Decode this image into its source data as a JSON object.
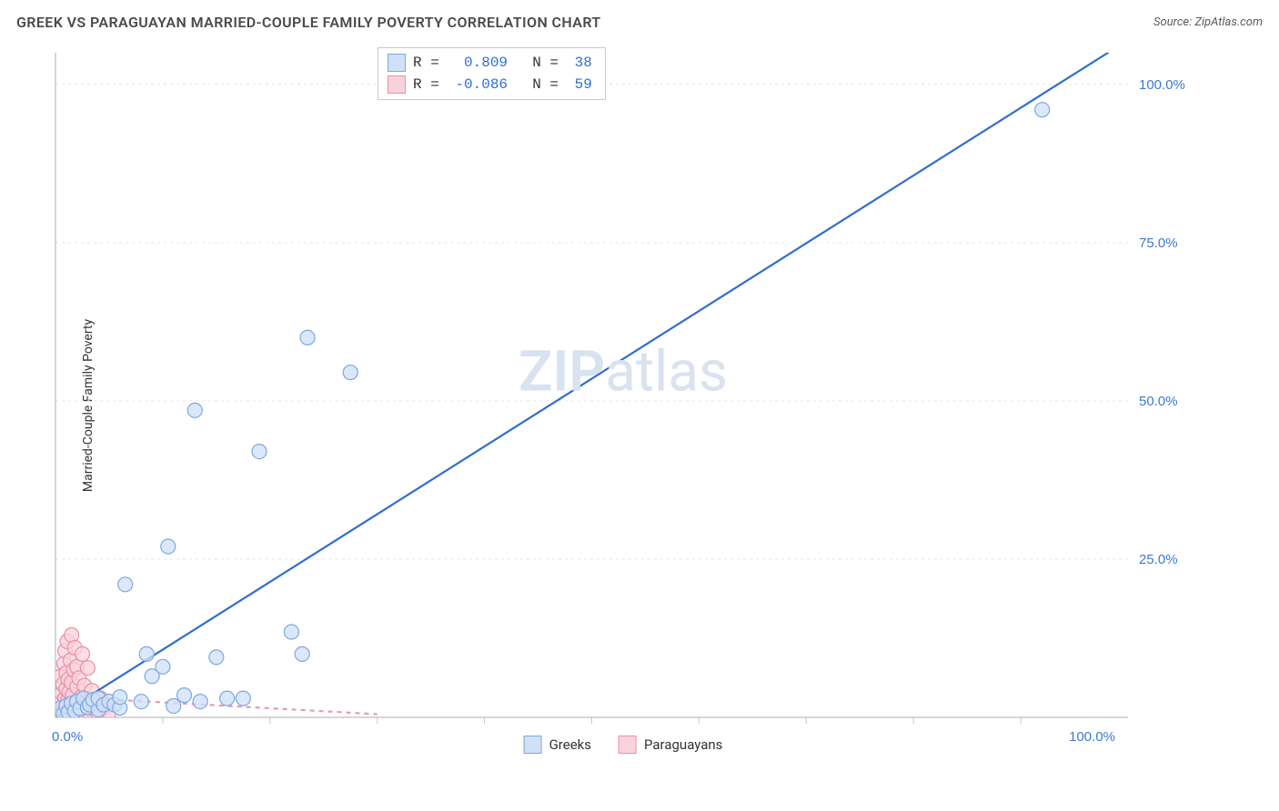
{
  "header": {
    "title": "GREEK VS PARAGUAYAN MARRIED-COUPLE FAMILY POVERTY CORRELATION CHART",
    "title_color": "#4a4a4a",
    "source_prefix": "Source: ",
    "source_name": "ZipAtlas.com",
    "source_color": "#5a5a5a"
  },
  "axes": {
    "y_label": "Married-Couple Family Poverty",
    "x_min": 0,
    "x_max": 100,
    "y_min": 0,
    "y_max": 105,
    "x_origin_label": "0.0%",
    "x_max_label": "100.0%",
    "y_ticks": [
      {
        "value": 25,
        "label": "25.0%"
      },
      {
        "value": 50,
        "label": "50.0%"
      },
      {
        "value": 75,
        "label": "75.0%"
      },
      {
        "value": 100,
        "label": "100.0%"
      }
    ],
    "x_ticks_minor": [
      10,
      20,
      30,
      40,
      50,
      60,
      70,
      80,
      90
    ],
    "axis_line_color": "#c8c8c8",
    "grid_color": "#e6e6e6",
    "tick_label_color": "#3b78d8"
  },
  "watermark": {
    "zip": "ZIP",
    "atlas": "atlas",
    "color": "#d9e2ef"
  },
  "series": {
    "greeks": {
      "label": "Greeks",
      "marker_fill": "#cfe0f7",
      "marker_stroke": "#7ea8e0",
      "line_color": "#2f6fd0",
      "line_dash": "none",
      "marker_radius": 8,
      "r_value": "0.809",
      "n_value": "38",
      "trend": {
        "x1": 0,
        "y1": 0,
        "x2": 100,
        "y2": 107
      },
      "points": [
        [
          0.5,
          1.5
        ],
        [
          0.7,
          0.5
        ],
        [
          1.0,
          1.8
        ],
        [
          1.2,
          0.8
        ],
        [
          1.5,
          2.2
        ],
        [
          1.8,
          1.0
        ],
        [
          2.0,
          2.5
        ],
        [
          2.3,
          1.4
        ],
        [
          2.6,
          3.0
        ],
        [
          3.0,
          1.6
        ],
        [
          3.2,
          2.0
        ],
        [
          3.5,
          2.8
        ],
        [
          4.0,
          1.2
        ],
        [
          4.0,
          3.0
        ],
        [
          4.5,
          2.0
        ],
        [
          5.0,
          2.5
        ],
        [
          5.5,
          2.0
        ],
        [
          6.0,
          1.5
        ],
        [
          6.0,
          3.2
        ],
        [
          6.5,
          21.0
        ],
        [
          8.0,
          2.5
        ],
        [
          8.5,
          10.0
        ],
        [
          9.0,
          6.5
        ],
        [
          10.0,
          8.0
        ],
        [
          10.5,
          27.0
        ],
        [
          11.0,
          1.8
        ],
        [
          12.0,
          3.5
        ],
        [
          13.0,
          48.5
        ],
        [
          13.5,
          2.5
        ],
        [
          15.0,
          9.5
        ],
        [
          16.0,
          3.0
        ],
        [
          17.5,
          3.0
        ],
        [
          19.0,
          42.0
        ],
        [
          22.0,
          13.5
        ],
        [
          23.0,
          10.0
        ],
        [
          23.5,
          60.0
        ],
        [
          27.5,
          54.5
        ],
        [
          92.0,
          96.0
        ]
      ]
    },
    "paraguayans": {
      "label": "Paraguayans",
      "marker_fill": "#f9d3dc",
      "marker_stroke": "#e890a8",
      "line_color": "#e99ab0",
      "line_dash": "5,5",
      "marker_radius": 8,
      "r_value": "-0.086",
      "n_value": "59",
      "trend": {
        "x1": 0,
        "y1": 3.3,
        "x2": 30,
        "y2": 0.5
      },
      "points": [
        [
          0.3,
          0.5
        ],
        [
          0.4,
          1.2
        ],
        [
          0.5,
          2.5
        ],
        [
          0.5,
          6.5
        ],
        [
          0.6,
          0.8
        ],
        [
          0.6,
          3.8
        ],
        [
          0.7,
          1.5
        ],
        [
          0.7,
          5.2
        ],
        [
          0.8,
          0.4
        ],
        [
          0.8,
          2.0
        ],
        [
          0.8,
          8.5
        ],
        [
          0.9,
          1.0
        ],
        [
          0.9,
          3.0
        ],
        [
          0.9,
          10.5
        ],
        [
          1.0,
          0.6
        ],
        [
          1.0,
          4.5
        ],
        [
          1.0,
          7.0
        ],
        [
          1.1,
          1.8
        ],
        [
          1.1,
          12.0
        ],
        [
          1.2,
          0.9
        ],
        [
          1.2,
          2.8
        ],
        [
          1.2,
          6.0
        ],
        [
          1.3,
          1.3
        ],
        [
          1.3,
          4.0
        ],
        [
          1.4,
          0.5
        ],
        [
          1.4,
          9.0
        ],
        [
          1.5,
          2.2
        ],
        [
          1.5,
          5.5
        ],
        [
          1.5,
          13.0
        ],
        [
          1.6,
          1.0
        ],
        [
          1.6,
          3.5
        ],
        [
          1.7,
          0.7
        ],
        [
          1.7,
          7.5
        ],
        [
          1.8,
          2.0
        ],
        [
          1.8,
          11.0
        ],
        [
          1.9,
          1.5
        ],
        [
          2.0,
          0.8
        ],
        [
          2.0,
          4.8
        ],
        [
          2.0,
          8.0
        ],
        [
          2.1,
          2.5
        ],
        [
          2.2,
          1.2
        ],
        [
          2.2,
          6.2
        ],
        [
          2.3,
          0.6
        ],
        [
          2.4,
          3.2
        ],
        [
          2.5,
          1.8
        ],
        [
          2.5,
          10.0
        ],
        [
          2.6,
          0.9
        ],
        [
          2.7,
          5.0
        ],
        [
          2.8,
          2.3
        ],
        [
          3.0,
          1.4
        ],
        [
          3.0,
          7.8
        ],
        [
          3.2,
          0.7
        ],
        [
          3.4,
          4.2
        ],
        [
          3.5,
          2.0
        ],
        [
          3.8,
          1.1
        ],
        [
          4.0,
          0.5
        ],
        [
          4.2,
          3.0
        ],
        [
          4.5,
          1.6
        ],
        [
          5.0,
          0.8
        ]
      ]
    }
  },
  "legend_top": {
    "border_color": "#c8c8c8",
    "label_color": "#333333",
    "value_color": "#2f6fd0"
  },
  "legend_bottom": {
    "text_color": "#333333"
  }
}
